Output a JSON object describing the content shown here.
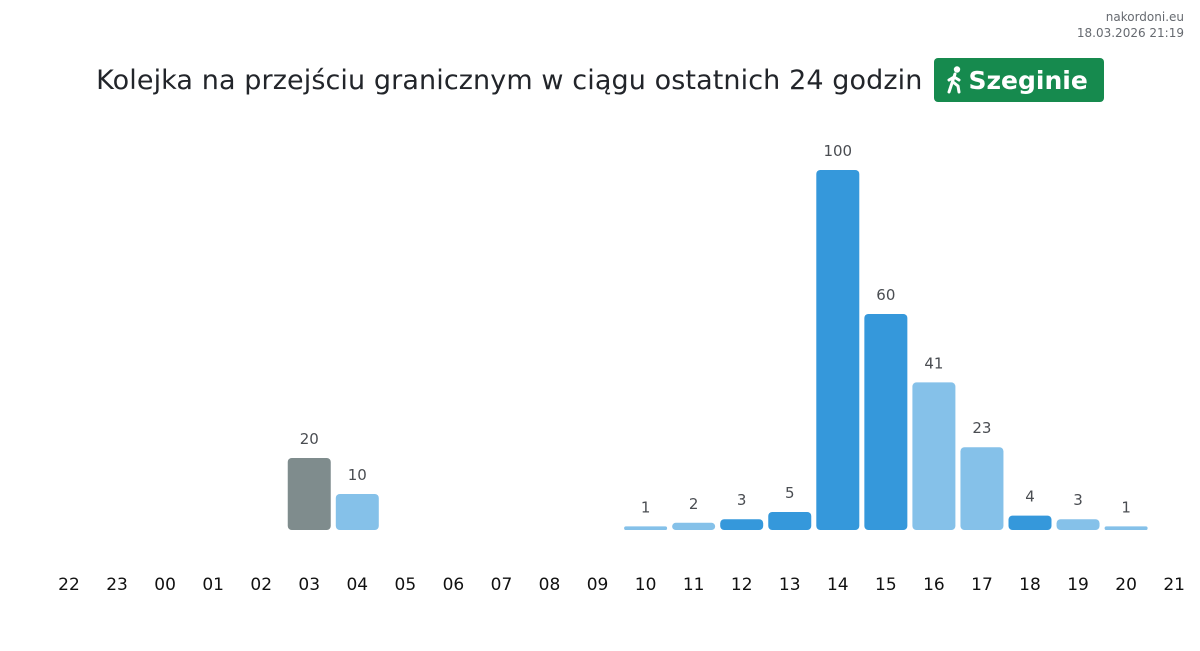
{
  "site": {
    "name": "nakordoni.eu",
    "timestamp": "18.03.2026 21:19"
  },
  "header": {
    "title": "Kolejka na przejściu granicznym w ciągu ostatnich 24 godzin",
    "badge_label": "Szeginie",
    "badge_icon": "pedestrian-icon"
  },
  "colors": {
    "primary": "#3598db",
    "secondary": "#85c1e9",
    "grey": "#7f8c8d",
    "badge": "#168a4e"
  },
  "chart_data": {
    "type": "bar",
    "categories": [
      "22",
      "23",
      "00",
      "01",
      "02",
      "03",
      "04",
      "05",
      "06",
      "07",
      "08",
      "09",
      "10",
      "11",
      "12",
      "13",
      "14",
      "15",
      "16",
      "17",
      "18",
      "19",
      "20",
      "21"
    ],
    "values": [
      null,
      null,
      null,
      null,
      null,
      20,
      10,
      null,
      null,
      null,
      null,
      null,
      1,
      2,
      3,
      5,
      100,
      60,
      41,
      23,
      4,
      3,
      1,
      null
    ],
    "bar_colors": [
      null,
      null,
      null,
      null,
      null,
      "grey",
      "secondary",
      null,
      null,
      null,
      null,
      null,
      "secondary",
      "secondary",
      "primary",
      "primary",
      "primary",
      "primary",
      "secondary",
      "secondary",
      "primary",
      "secondary",
      "secondary",
      null
    ],
    "ylim": [
      0,
      100
    ],
    "grid": false,
    "legend": "none"
  }
}
